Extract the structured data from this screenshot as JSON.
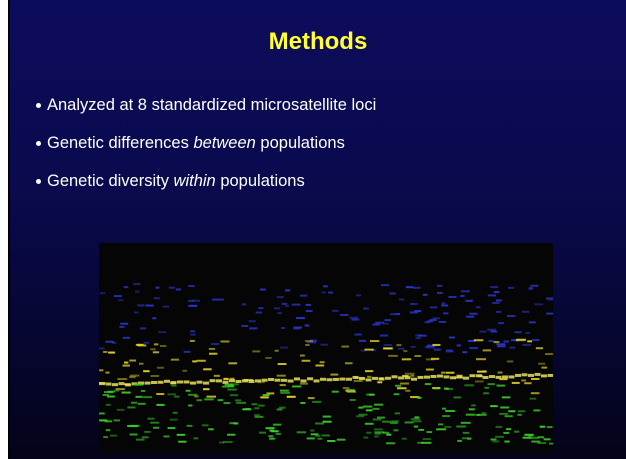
{
  "title": "Methods",
  "bullets": [
    {
      "parts": [
        "Analyzed at 8 standardized microsatellite loci"
      ]
    },
    {
      "parts": [
        "Genetic differences ",
        "between",
        " populations"
      ]
    },
    {
      "parts": [
        "Genetic diversity ",
        "within",
        " populations"
      ]
    }
  ]
}
